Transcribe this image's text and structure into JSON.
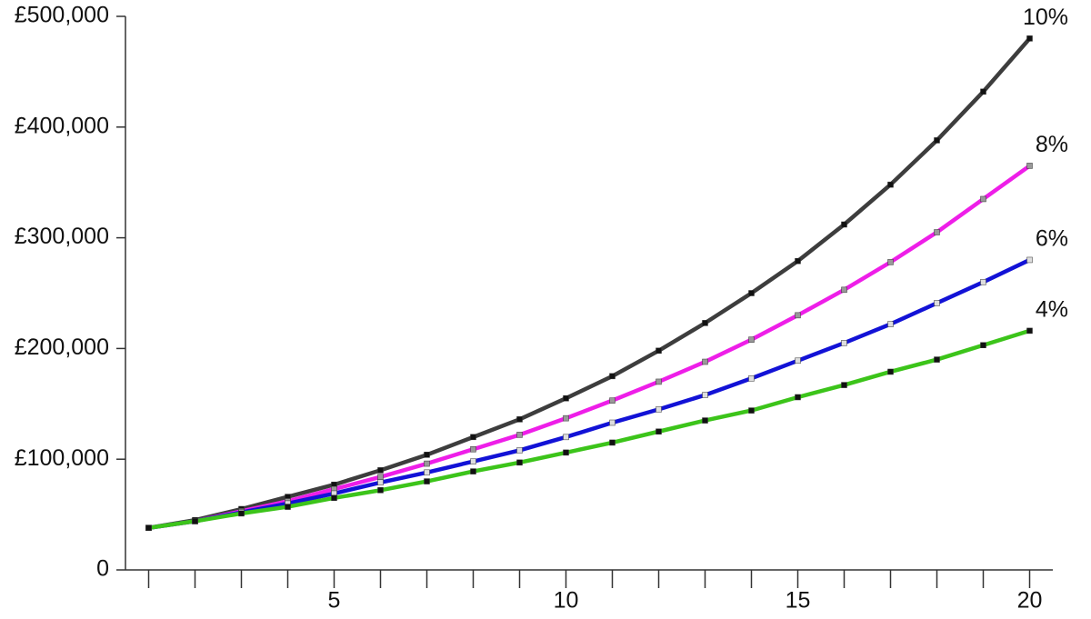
{
  "chart_data": {
    "type": "line",
    "x": [
      1,
      2,
      3,
      4,
      5,
      6,
      7,
      8,
      9,
      10,
      11,
      12,
      13,
      14,
      15,
      16,
      17,
      18,
      19,
      20
    ],
    "series": [
      {
        "name": "10%",
        "color": "#3d3d3d",
        "marker_color": "#111111",
        "values": [
          38000,
          45000,
          55000,
          66000,
          77000,
          90000,
          104000,
          120000,
          136000,
          155000,
          175000,
          198000,
          223000,
          250000,
          279000,
          312000,
          348000,
          388000,
          432000,
          480000
        ]
      },
      {
        "name": "8%",
        "color": "#ee1ee8",
        "marker_color": "#999999",
        "values": [
          38000,
          44000,
          53000,
          62000,
          73000,
          84000,
          96000,
          109000,
          122000,
          137000,
          153000,
          170000,
          188000,
          208000,
          230000,
          253000,
          278000,
          305000,
          335000,
          365000
        ]
      },
      {
        "name": "6%",
        "color": "#1212d6",
        "marker_color": "#dddddd",
        "values": [
          38000,
          44000,
          52000,
          60000,
          69000,
          79000,
          88000,
          98000,
          108000,
          120000,
          133000,
          145000,
          158000,
          173000,
          189000,
          205000,
          222000,
          241000,
          260000,
          280000
        ]
      },
      {
        "name": "4%",
        "color": "#3cc41a",
        "marker_color": "#111111",
        "values": [
          38000,
          44000,
          51000,
          57000,
          65000,
          72000,
          80000,
          89000,
          97000,
          106000,
          115000,
          125000,
          135000,
          144000,
          156000,
          167000,
          179000,
          190000,
          203000,
          216000
        ]
      }
    ],
    "xlim": [
      0.5,
      20.5
    ],
    "xticks": [
      5,
      10,
      15,
      20
    ],
    "ylim": [
      0,
      500000
    ],
    "yticks": [
      0,
      {
        "value": 100000,
        "label": "£100,000"
      },
      {
        "value": 200000,
        "label": "£200,000"
      },
      {
        "value": 300000,
        "label": "£300,000"
      },
      {
        "value": 400000,
        "label": "£400,000"
      },
      {
        "value": 500000,
        "label": "£500,000"
      }
    ],
    "grid": false
  }
}
